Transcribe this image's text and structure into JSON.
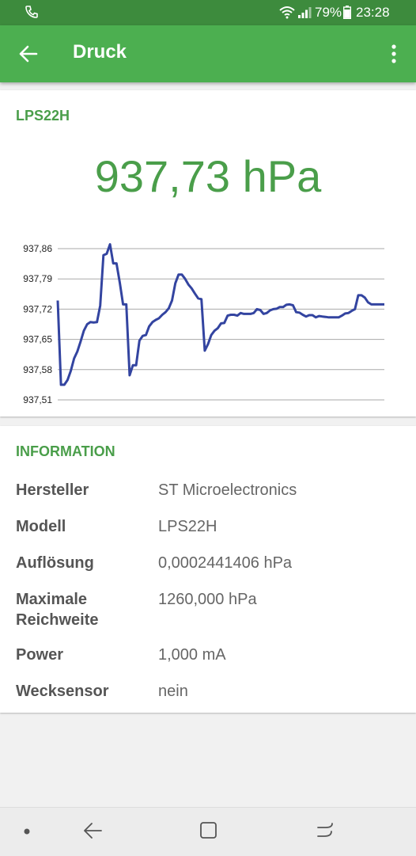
{
  "status_bar": {
    "battery": "79%",
    "time": "23:28",
    "icons": [
      "phone-icon",
      "wifi-icon",
      "signal-icon",
      "battery-icon"
    ]
  },
  "app_bar": {
    "title": "Druck"
  },
  "sensor": {
    "name": "LPS22H",
    "value": "937,73 hPa"
  },
  "chart_data": {
    "type": "line",
    "color": "#3344a0",
    "y_ticks": [
      "937,86",
      "937,79",
      "937,72",
      "937,65",
      "937,58",
      "937,51"
    ],
    "ylim": [
      937.51,
      937.86
    ],
    "x": [
      0,
      1,
      2,
      3,
      4,
      5,
      6,
      7,
      8,
      9,
      10,
      11,
      12,
      13,
      14,
      15,
      16,
      17,
      18,
      19,
      20,
      21,
      22,
      23,
      24,
      25,
      26,
      27,
      28,
      29,
      30,
      31,
      32,
      33,
      34,
      35,
      36,
      37,
      38,
      39,
      40,
      41,
      42,
      43,
      44,
      45,
      46,
      47,
      48,
      49,
      50,
      51,
      52,
      53,
      54,
      55,
      56,
      57,
      58,
      59,
      60,
      61,
      62,
      63,
      64,
      65,
      66,
      67,
      68,
      69,
      70,
      71,
      72,
      73,
      74,
      75,
      76,
      77,
      78,
      79,
      80,
      81,
      82,
      83,
      84,
      85,
      86,
      87,
      88,
      89,
      90,
      91,
      92,
      93,
      94,
      95,
      96,
      97,
      98,
      99,
      100
    ],
    "values": [
      937.74,
      937.545,
      937.545,
      937.556,
      937.577,
      937.606,
      937.622,
      937.645,
      937.67,
      937.685,
      937.69,
      937.689,
      937.69,
      937.728,
      937.845,
      937.848,
      937.87,
      937.826,
      937.826,
      937.781,
      937.731,
      937.731,
      937.567,
      937.59,
      937.59,
      937.647,
      937.658,
      937.66,
      937.68,
      937.69,
      937.695,
      937.699,
      937.707,
      937.713,
      937.722,
      937.74,
      937.78,
      937.8,
      937.8,
      937.79,
      937.777,
      937.768,
      937.756,
      937.745,
      937.743,
      937.624,
      937.639,
      937.66,
      937.67,
      937.676,
      937.687,
      937.688,
      937.705,
      937.707,
      937.707,
      937.705,
      937.711,
      937.709,
      937.709,
      937.709,
      937.711,
      937.72,
      937.718,
      937.709,
      937.711,
      937.717,
      937.72,
      937.721,
      937.725,
      937.725,
      937.73,
      937.731,
      937.729,
      937.713,
      937.712,
      937.707,
      937.703,
      937.706,
      937.706,
      937.701,
      937.704,
      937.703,
      937.702,
      937.701,
      937.701,
      937.701,
      937.701,
      937.705,
      937.71,
      937.711,
      937.716,
      937.72,
      937.752,
      937.752,
      937.747,
      937.736,
      937.731,
      937.731,
      937.731,
      937.731,
      937.731
    ]
  },
  "info": {
    "title": "INFORMATION",
    "rows": [
      {
        "key": "Hersteller",
        "value": "ST Microelectronics"
      },
      {
        "key": "Modell",
        "value": "LPS22H"
      },
      {
        "key": "Auflösung",
        "value": "0,0002441406 hPa"
      },
      {
        "key": "Maximale Reichweite",
        "value": "1260,000 hPa"
      },
      {
        "key": "Power",
        "value": "1,000 mA"
      },
      {
        "key": "Wecksensor",
        "value": "nein"
      }
    ]
  },
  "nav_bar": {
    "icons": [
      "dot-icon",
      "nav-back-icon",
      "nav-home-icon",
      "nav-recents-icon"
    ]
  }
}
